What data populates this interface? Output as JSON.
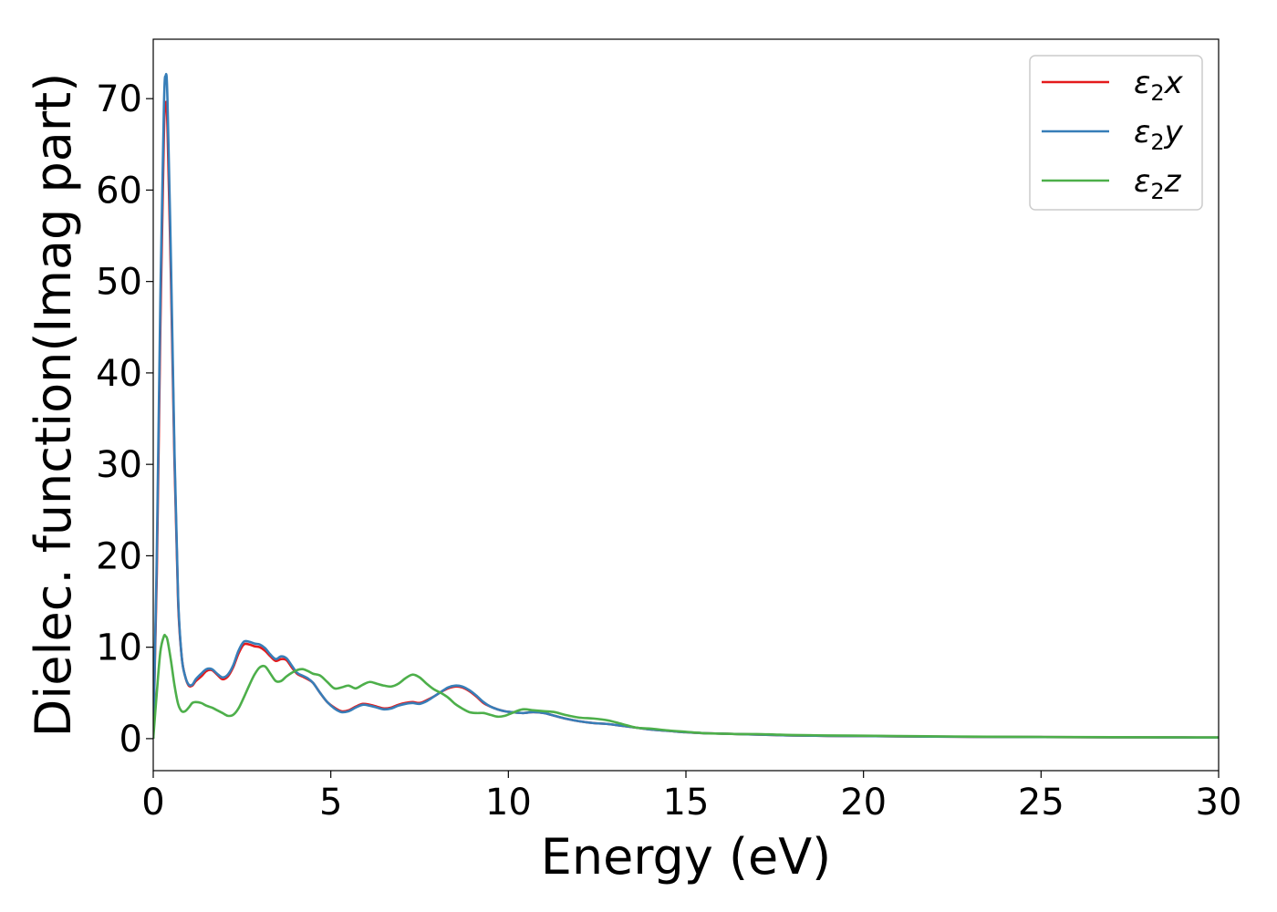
{
  "chart_data": {
    "type": "line",
    "title": "",
    "xlabel": "Energy (eV)",
    "ylabel": "Dielec. function(Imag part)",
    "xlim": [
      0,
      30
    ],
    "ylim": [
      -3.5,
      76.5
    ],
    "xticks": [
      0,
      5,
      10,
      15,
      20,
      25,
      30
    ],
    "yticks": [
      0,
      10,
      20,
      30,
      40,
      50,
      60,
      70
    ],
    "grid": false,
    "legend_position": "top-right",
    "series": [
      {
        "name": "ε2x",
        "color": "#e41a1c",
        "x": [
          0,
          0.1,
          0.2,
          0.3,
          0.35,
          0.4,
          0.5,
          0.6,
          0.7,
          0.8,
          0.9,
          1.0,
          1.1,
          1.2,
          1.35,
          1.5,
          1.65,
          1.8,
          1.95,
          2.1,
          2.25,
          2.4,
          2.55,
          2.7,
          2.85,
          3.0,
          3.15,
          3.3,
          3.45,
          3.6,
          3.75,
          3.9,
          4.05,
          4.2,
          4.35,
          4.5,
          4.7,
          4.9,
          5.1,
          5.3,
          5.5,
          5.7,
          5.9,
          6.1,
          6.3,
          6.5,
          6.7,
          6.9,
          7.1,
          7.3,
          7.5,
          7.7,
          7.9,
          8.1,
          8.3,
          8.5,
          8.7,
          8.9,
          9.1,
          9.3,
          9.5,
          9.7,
          9.9,
          10.1,
          10.4,
          10.7,
          11.0,
          11.3,
          11.6,
          12.0,
          12.4,
          12.8,
          13.2,
          13.6,
          14.0,
          14.5,
          15.0,
          15.5,
          16.0,
          16.5,
          17.0,
          17.5,
          18.0,
          19.0,
          20.0,
          21.0,
          22.0,
          23.0,
          24.0,
          25.0,
          26.0,
          27.0,
          28.0,
          29.0,
          30.0
        ],
        "values": [
          0,
          18,
          45,
          66,
          69.5,
          67,
          50,
          30,
          15,
          9,
          6.8,
          5.8,
          5.8,
          6.3,
          6.8,
          7.4,
          7.5,
          7.0,
          6.5,
          6.8,
          7.8,
          9.3,
          10.3,
          10.3,
          10.1,
          10.0,
          9.6,
          9.0,
          8.5,
          8.7,
          8.6,
          7.8,
          7.1,
          6.8,
          6.5,
          6.1,
          5.0,
          4.0,
          3.4,
          3.0,
          3.1,
          3.5,
          3.8,
          3.7,
          3.5,
          3.3,
          3.4,
          3.7,
          3.9,
          4.0,
          3.9,
          4.2,
          4.6,
          5.1,
          5.5,
          5.7,
          5.6,
          5.2,
          4.6,
          3.9,
          3.5,
          3.2,
          3.0,
          2.9,
          2.8,
          2.9,
          2.8,
          2.5,
          2.2,
          1.9,
          1.7,
          1.6,
          1.4,
          1.2,
          1.0,
          0.85,
          0.7,
          0.6,
          0.55,
          0.5,
          0.45,
          0.4,
          0.35,
          0.3,
          0.28,
          0.25,
          0.22,
          0.2,
          0.18,
          0.17,
          0.16,
          0.15,
          0.14,
          0.13,
          0.12
        ]
      },
      {
        "name": "ε2y",
        "color": "#377eb8",
        "x": [
          0,
          0.1,
          0.2,
          0.3,
          0.35,
          0.4,
          0.5,
          0.6,
          0.7,
          0.8,
          0.9,
          1.0,
          1.1,
          1.2,
          1.35,
          1.5,
          1.65,
          1.8,
          1.95,
          2.1,
          2.25,
          2.4,
          2.55,
          2.7,
          2.85,
          3.0,
          3.15,
          3.3,
          3.45,
          3.6,
          3.75,
          3.9,
          4.05,
          4.2,
          4.35,
          4.5,
          4.7,
          4.9,
          5.1,
          5.3,
          5.5,
          5.7,
          5.9,
          6.1,
          6.3,
          6.5,
          6.7,
          6.9,
          7.1,
          7.3,
          7.5,
          7.7,
          7.9,
          8.1,
          8.3,
          8.5,
          8.7,
          8.9,
          9.1,
          9.3,
          9.5,
          9.7,
          9.9,
          10.1,
          10.4,
          10.7,
          11.0,
          11.3,
          11.6,
          12.0,
          12.4,
          12.8,
          13.2,
          13.6,
          14.0,
          14.5,
          15.0,
          15.5,
          16.0,
          16.5,
          17.0,
          17.5,
          18.0,
          19.0,
          20.0,
          21.0,
          22.0,
          23.0,
          24.0,
          25.0,
          26.0,
          27.0,
          28.0,
          29.0,
          30.0
        ],
        "values": [
          0,
          20,
          48,
          69,
          72.5,
          70,
          52,
          31,
          15.5,
          9,
          6.8,
          5.9,
          5.9,
          6.5,
          7.1,
          7.6,
          7.6,
          7.1,
          6.7,
          7.0,
          8.0,
          9.6,
          10.6,
          10.6,
          10.4,
          10.3,
          9.9,
          9.2,
          8.7,
          9.0,
          8.8,
          8.0,
          7.2,
          6.9,
          6.6,
          6.1,
          5.0,
          4.0,
          3.3,
          2.9,
          3.0,
          3.4,
          3.7,
          3.6,
          3.4,
          3.2,
          3.3,
          3.6,
          3.8,
          3.9,
          3.8,
          4.1,
          4.6,
          5.1,
          5.6,
          5.8,
          5.7,
          5.3,
          4.7,
          4.0,
          3.5,
          3.2,
          3.0,
          2.9,
          2.8,
          2.9,
          2.8,
          2.5,
          2.2,
          1.9,
          1.7,
          1.6,
          1.4,
          1.2,
          1.0,
          0.85,
          0.7,
          0.6,
          0.55,
          0.5,
          0.45,
          0.4,
          0.35,
          0.3,
          0.28,
          0.25,
          0.22,
          0.2,
          0.18,
          0.17,
          0.16,
          0.15,
          0.14,
          0.13,
          0.12
        ]
      },
      {
        "name": "ε2z",
        "color": "#4daf4a",
        "x": [
          0,
          0.1,
          0.2,
          0.3,
          0.35,
          0.4,
          0.5,
          0.6,
          0.7,
          0.8,
          0.9,
          1.0,
          1.1,
          1.2,
          1.35,
          1.5,
          1.65,
          1.8,
          1.95,
          2.1,
          2.25,
          2.4,
          2.55,
          2.7,
          2.85,
          3.0,
          3.15,
          3.3,
          3.45,
          3.6,
          3.75,
          3.9,
          4.05,
          4.2,
          4.35,
          4.5,
          4.7,
          4.9,
          5.1,
          5.3,
          5.5,
          5.7,
          5.9,
          6.1,
          6.3,
          6.5,
          6.7,
          6.9,
          7.1,
          7.3,
          7.5,
          7.7,
          7.9,
          8.1,
          8.3,
          8.5,
          8.7,
          8.9,
          9.1,
          9.3,
          9.5,
          9.7,
          9.9,
          10.1,
          10.4,
          10.7,
          11.0,
          11.3,
          11.6,
          12.0,
          12.4,
          12.8,
          13.2,
          13.6,
          14.0,
          14.5,
          15.0,
          15.5,
          16.0,
          16.5,
          17.0,
          17.5,
          18.0,
          19.0,
          20.0,
          21.0,
          22.0,
          23.0,
          24.0,
          25.0,
          26.0,
          27.0,
          28.0,
          29.0,
          30.0
        ],
        "values": [
          0,
          5,
          9.5,
          11.2,
          11.2,
          10.8,
          8.5,
          5.8,
          3.8,
          3.0,
          3.0,
          3.4,
          3.9,
          4.0,
          3.9,
          3.6,
          3.4,
          3.1,
          2.8,
          2.5,
          2.6,
          3.3,
          4.5,
          5.8,
          7.0,
          7.8,
          7.9,
          7.1,
          6.3,
          6.3,
          6.8,
          7.2,
          7.5,
          7.6,
          7.4,
          7.1,
          6.9,
          6.2,
          5.5,
          5.6,
          5.8,
          5.5,
          5.9,
          6.2,
          6.0,
          5.8,
          5.7,
          6.0,
          6.6,
          7.0,
          6.7,
          6.0,
          5.4,
          5.0,
          4.5,
          3.8,
          3.3,
          2.9,
          2.8,
          2.8,
          2.6,
          2.4,
          2.5,
          2.8,
          3.2,
          3.1,
          3.0,
          2.9,
          2.6,
          2.3,
          2.2,
          2.0,
          1.6,
          1.2,
          1.1,
          0.9,
          0.75,
          0.6,
          0.55,
          0.5,
          0.5,
          0.45,
          0.4,
          0.35,
          0.32,
          0.28,
          0.25,
          0.22,
          0.2,
          0.18,
          0.17,
          0.16,
          0.15,
          0.14,
          0.13
        ]
      }
    ],
    "legend": [
      {
        "symbol": "ε",
        "sub": "2",
        "axis": "x"
      },
      {
        "symbol": "ε",
        "sub": "2",
        "axis": "y"
      },
      {
        "symbol": "ε",
        "sub": "2",
        "axis": "z"
      }
    ]
  }
}
